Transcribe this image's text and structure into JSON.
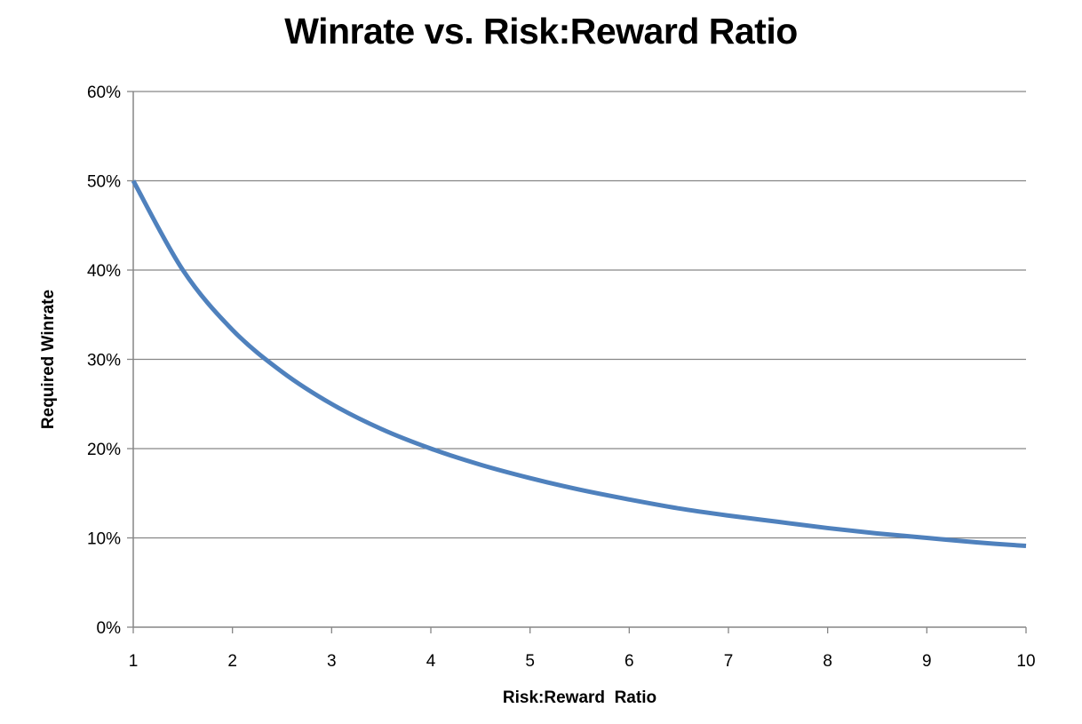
{
  "chart_data": {
    "type": "line",
    "title": "Winrate vs. Risk:Reward Ratio",
    "xlabel": "Risk:Reward  Ratio",
    "ylabel": "Required Winrate",
    "xlim": [
      1,
      10
    ],
    "ylim": [
      0,
      0.6
    ],
    "x_ticks": [
      1,
      2,
      3,
      4,
      5,
      6,
      7,
      8,
      9,
      10
    ],
    "x_tick_labels": [
      "1",
      "2",
      "3",
      "4",
      "5",
      "6",
      "7",
      "8",
      "9",
      "10"
    ],
    "y_ticks": [
      0,
      0.1,
      0.2,
      0.3,
      0.4,
      0.5,
      0.6
    ],
    "y_tick_labels": [
      "0%",
      "10%",
      "20%",
      "30%",
      "40%",
      "50%",
      "60%"
    ],
    "grid": "horizontal",
    "legend": "none",
    "series": [
      {
        "color": "#4f81bd",
        "x": [
          1,
          1.5,
          2,
          2.5,
          3,
          3.5,
          4,
          4.5,
          5,
          5.5,
          6,
          6.5,
          7,
          7.5,
          8,
          8.5,
          9,
          9.5,
          10
        ],
        "y": [
          0.5,
          0.4,
          0.333,
          0.286,
          0.25,
          0.222,
          0.2,
          0.182,
          0.167,
          0.154,
          0.143,
          0.133,
          0.125,
          0.118,
          0.111,
          0.105,
          0.1,
          0.095,
          0.091
        ]
      }
    ]
  }
}
